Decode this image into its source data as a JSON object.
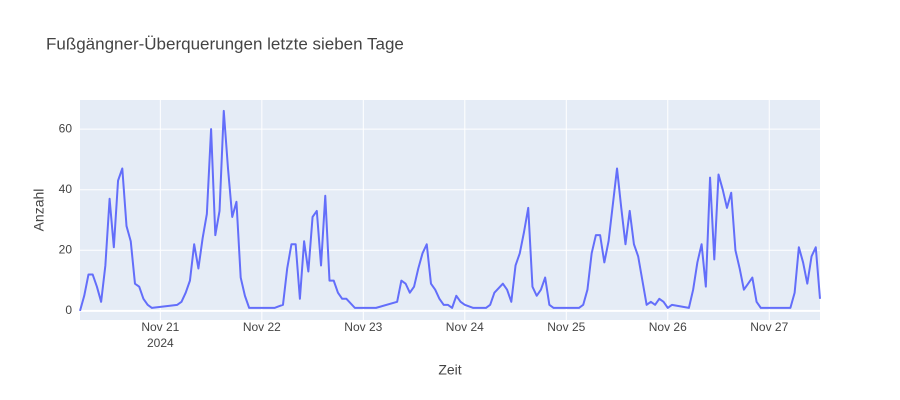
{
  "chart_data": {
    "type": "line",
    "title": "Fußgängner-Überquerungen letzte sieben Tage",
    "x_label": "Zeit",
    "y_label": "Anzahl",
    "x_tick_year": "2024",
    "xlim": [
      "2024-11-20 05:00",
      "2024-11-27 12:00"
    ],
    "xticks": [
      {
        "value": "2024-11-21",
        "label": "Nov 21"
      },
      {
        "value": "2024-11-22",
        "label": "Nov 22"
      },
      {
        "value": "2024-11-23",
        "label": "Nov 23"
      },
      {
        "value": "2024-11-24",
        "label": "Nov 24"
      },
      {
        "value": "2024-11-25",
        "label": "Nov 25"
      },
      {
        "value": "2024-11-26",
        "label": "Nov 26"
      },
      {
        "value": "2024-11-27",
        "label": "Nov 27"
      }
    ],
    "ylim": [
      -3.0,
      69.6
    ],
    "yticks": [
      0,
      20,
      40,
      60
    ],
    "grid": true,
    "series": [
      {
        "name": "Anzahl",
        "color": "#636efa",
        "x": [
          "2024-11-20 05:00",
          "2024-11-20 06:00",
          "2024-11-20 07:00",
          "2024-11-20 08:00",
          "2024-11-20 09:00",
          "2024-11-20 10:00",
          "2024-11-20 11:00",
          "2024-11-20 12:00",
          "2024-11-20 13:00",
          "2024-11-20 14:00",
          "2024-11-20 15:00",
          "2024-11-20 16:00",
          "2024-11-20 17:00",
          "2024-11-20 18:00",
          "2024-11-20 19:00",
          "2024-11-20 20:00",
          "2024-11-20 21:00",
          "2024-11-20 22:00",
          "2024-11-21 04:00",
          "2024-11-21 05:00",
          "2024-11-21 06:00",
          "2024-11-21 07:00",
          "2024-11-21 08:00",
          "2024-11-21 09:00",
          "2024-11-21 10:00",
          "2024-11-21 11:00",
          "2024-11-21 12:00",
          "2024-11-21 13:00",
          "2024-11-21 14:00",
          "2024-11-21 15:00",
          "2024-11-21 16:00",
          "2024-11-21 17:00",
          "2024-11-21 18:00",
          "2024-11-21 19:00",
          "2024-11-21 20:00",
          "2024-11-21 21:00",
          "2024-11-22 03:00",
          "2024-11-22 04:00",
          "2024-11-22 05:00",
          "2024-11-22 06:00",
          "2024-11-22 07:00",
          "2024-11-22 08:00",
          "2024-11-22 09:00",
          "2024-11-22 10:00",
          "2024-11-22 11:00",
          "2024-11-22 12:00",
          "2024-11-22 13:00",
          "2024-11-22 14:00",
          "2024-11-22 15:00",
          "2024-11-22 16:00",
          "2024-11-22 17:00",
          "2024-11-22 18:00",
          "2024-11-22 19:00",
          "2024-11-22 20:00",
          "2024-11-22 22:00",
          "2024-11-23 03:00",
          "2024-11-23 08:00",
          "2024-11-23 09:00",
          "2024-11-23 10:00",
          "2024-11-23 11:00",
          "2024-11-23 12:00",
          "2024-11-23 13:00",
          "2024-11-23 14:00",
          "2024-11-23 15:00",
          "2024-11-23 16:00",
          "2024-11-23 17:00",
          "2024-11-23 18:00",
          "2024-11-23 19:00",
          "2024-11-23 20:00",
          "2024-11-23 21:00",
          "2024-11-23 22:00",
          "2024-11-23 23:00",
          "2024-11-24 00:00",
          "2024-11-24 02:00",
          "2024-11-24 05:00",
          "2024-11-24 06:00",
          "2024-11-24 07:00",
          "2024-11-24 09:00",
          "2024-11-24 10:00",
          "2024-11-24 11:00",
          "2024-11-24 12:00",
          "2024-11-24 13:00",
          "2024-11-24 14:00",
          "2024-11-24 15:00",
          "2024-11-24 16:00",
          "2024-11-24 17:00",
          "2024-11-24 18:00",
          "2024-11-24 19:00",
          "2024-11-24 20:00",
          "2024-11-24 21:00",
          "2024-11-25 03:00",
          "2024-11-25 04:00",
          "2024-11-25 05:00",
          "2024-11-25 06:00",
          "2024-11-25 07:00",
          "2024-11-25 08:00",
          "2024-11-25 09:00",
          "2024-11-25 10:00",
          "2024-11-25 12:00",
          "2024-11-25 13:00",
          "2024-11-25 14:00",
          "2024-11-25 15:00",
          "2024-11-25 16:00",
          "2024-11-25 17:00",
          "2024-11-25 18:00",
          "2024-11-25 19:00",
          "2024-11-25 20:00",
          "2024-11-25 21:00",
          "2024-11-25 22:00",
          "2024-11-25 23:00",
          "2024-11-26 00:00",
          "2024-11-26 01:00",
          "2024-11-26 05:00",
          "2024-11-26 06:00",
          "2024-11-26 07:00",
          "2024-11-26 08:00",
          "2024-11-26 09:00",
          "2024-11-26 10:00",
          "2024-11-26 11:00",
          "2024-11-26 12:00",
          "2024-11-26 13:00",
          "2024-11-26 14:00",
          "2024-11-26 15:00",
          "2024-11-26 16:00",
          "2024-11-26 17:00",
          "2024-11-26 18:00",
          "2024-11-26 19:00",
          "2024-11-26 20:00",
          "2024-11-26 21:00",
          "2024-11-26 22:00",
          "2024-11-27 05:00",
          "2024-11-27 06:00",
          "2024-11-27 07:00",
          "2024-11-27 08:00",
          "2024-11-27 09:00",
          "2024-11-27 10:00",
          "2024-11-27 11:00",
          "2024-11-27 12:00"
        ],
        "values": [
          0,
          5,
          12,
          12,
          8,
          3,
          15,
          37,
          21,
          43,
          47,
          28,
          23,
          9,
          8,
          4,
          2,
          1,
          2,
          3,
          6,
          10,
          22,
          14,
          24,
          32,
          60,
          25,
          33,
          66,
          47,
          31,
          36,
          11,
          5,
          1,
          1,
          1.5,
          2,
          14,
          22,
          22,
          4,
          23,
          13,
          31,
          33,
          15,
          38,
          10,
          10,
          6,
          4,
          4,
          1,
          1,
          3,
          10,
          9,
          6,
          8,
          14,
          19,
          22,
          9,
          7,
          4,
          2,
          2,
          1,
          5,
          3,
          2,
          1,
          1,
          2,
          6,
          9,
          7,
          3,
          15,
          19,
          26,
          34,
          8,
          5,
          7,
          11,
          2,
          1,
          1,
          2,
          7,
          19,
          25,
          25,
          16,
          23,
          47,
          34,
          22,
          33,
          22,
          18,
          10,
          2,
          3,
          2,
          4,
          3,
          1,
          2,
          1,
          7,
          16,
          22,
          8,
          44,
          17,
          45,
          40,
          34,
          39,
          20,
          14,
          7,
          9,
          11,
          3,
          1,
          1,
          6,
          21,
          16,
          9,
          18,
          21,
          4
        ]
      }
    ]
  }
}
